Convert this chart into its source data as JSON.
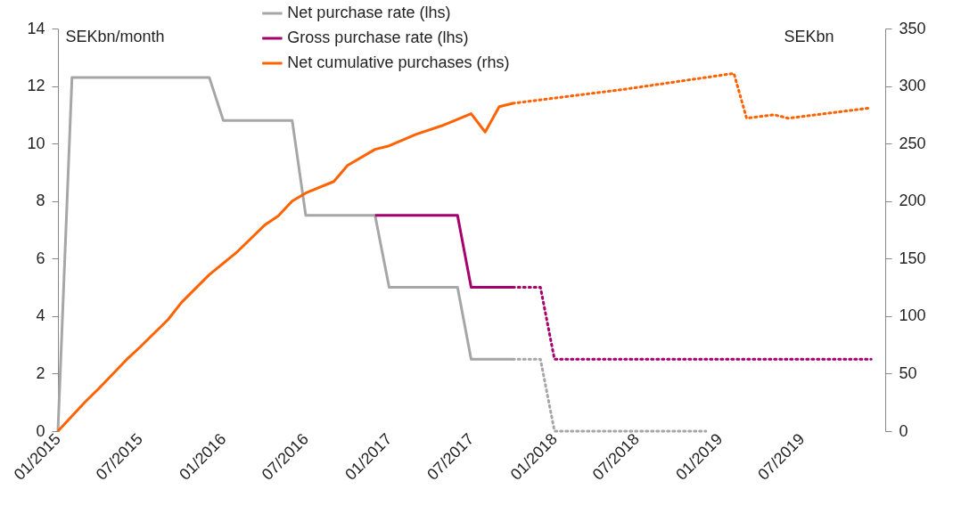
{
  "chart_data": {
    "type": "line",
    "ylabel": "SEKbn/month",
    "y2label": "SEKbn",
    "legend": "top",
    "line_style": "solid",
    "xlim": [
      "2015-01",
      "2020-01"
    ],
    "xticks": [
      {
        "value": "2015-01",
        "label": "01/2015"
      },
      {
        "value": "2015-07",
        "label": "07/2015"
      },
      {
        "value": "2016-01",
        "label": "01/2016"
      },
      {
        "value": "2016-07",
        "label": "07/2016"
      },
      {
        "value": "2017-01",
        "label": "01/2017"
      },
      {
        "value": "2017-07",
        "label": "07/2017"
      },
      {
        "value": "2018-01",
        "label": "01/2018"
      },
      {
        "value": "2018-07",
        "label": "07/2018"
      },
      {
        "value": "2019-01",
        "label": "01/2019"
      },
      {
        "value": "2019-07",
        "label": "07/2019"
      }
    ],
    "ylim": [
      0,
      14
    ],
    "yticks": [
      0,
      2,
      4,
      6,
      8,
      10,
      12,
      14
    ],
    "y2lim": [
      0,
      350
    ],
    "y2ticks": [
      0,
      50,
      100,
      150,
      200,
      250,
      300,
      350
    ],
    "series": [
      {
        "name": "Net purchase rate (lhs)",
        "color": "#a6a6a6",
        "x": [
          "2015-01",
          "2015-02",
          "2015-12",
          "2016-01",
          "2016-06",
          "2016-07",
          "2016-12",
          "2017-01",
          "2017-06",
          "2017-07",
          "2017-10"
        ],
        "values": [
          0,
          12.3,
          12.3,
          10.8,
          10.8,
          7.5,
          7.5,
          5,
          5,
          2.5,
          2.5
        ]
      },
      {
        "name": "Gross purchase rate (lhs)",
        "color": "#a5006b",
        "x": [
          "2016-12",
          "2017-06",
          "2017-07",
          "2017-10"
        ],
        "values": [
          7.5,
          7.5,
          5,
          5
        ]
      },
      {
        "name": "Net cumulative purchases (rhs)",
        "color": "#ff6200",
        "axis": "y2",
        "x": [
          "2015-01",
          "2015-03",
          "2015-04",
          "2015-06",
          "2015-07",
          "2015-09",
          "2015-10",
          "2015-12",
          "2016-02",
          "2016-04",
          "2016-05",
          "2016-06",
          "2016-07",
          "2016-09",
          "2016-10",
          "2016-12",
          "2017-01",
          "2017-03",
          "2017-05",
          "2017-07",
          "2017-08",
          "2017-09",
          "2017-10"
        ],
        "values": [
          0,
          25,
          37,
          62,
          73,
          97,
          112,
          136,
          156,
          179,
          187,
          200,
          207,
          217,
          231,
          245,
          248,
          258,
          266,
          276,
          260,
          282,
          285
        ]
      },
      {
        "color": "#a6a6a6",
        "line_style": "dotted",
        "x": [
          "2017-10",
          "2017-12",
          "2018-01",
          "2018-12"
        ],
        "values": [
          2.5,
          2.5,
          0,
          0
        ]
      },
      {
        "color": "#a5006b",
        "line_style": "dotted",
        "x": [
          "2017-10",
          "2017-12",
          "2018-01",
          "2019-12"
        ],
        "values": [
          5,
          5,
          2.5,
          2.5
        ]
      },
      {
        "color": "#ff6200",
        "line_style": "dotted",
        "axis": "y2",
        "x": [
          "2017-10",
          "2018-06",
          "2019-02",
          "2019-03",
          "2019-05",
          "2019-06",
          "2019-12"
        ],
        "values": [
          285,
          297,
          311,
          272,
          275,
          272,
          281
        ]
      }
    ]
  }
}
